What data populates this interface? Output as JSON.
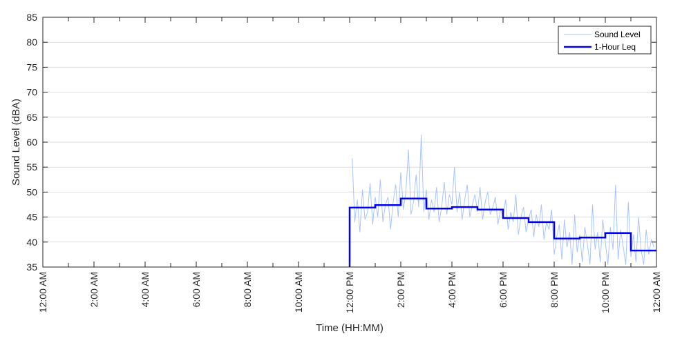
{
  "chart_data": {
    "type": "line",
    "title": "",
    "xlabel": "Time (HH:MM)",
    "ylabel": "Sound Level (dBA)",
    "ylim": [
      35,
      85
    ],
    "y_ticks": [
      35,
      40,
      45,
      50,
      55,
      60,
      65,
      70,
      75,
      80,
      85
    ],
    "xlim_hours": [
      0,
      24
    ],
    "x_ticks": [
      {
        "hour": 0,
        "label": "12:00 AM"
      },
      {
        "hour": 2,
        "label": "2:00 AM"
      },
      {
        "hour": 4,
        "label": "4:00 AM"
      },
      {
        "hour": 6,
        "label": "6:00 AM"
      },
      {
        "hour": 8,
        "label": "8:00 AM"
      },
      {
        "hour": 10,
        "label": "10:00 AM"
      },
      {
        "hour": 12,
        "label": "12:00 PM"
      },
      {
        "hour": 14,
        "label": "2:00 PM"
      },
      {
        "hour": 16,
        "label": "4:00 PM"
      },
      {
        "hour": 18,
        "label": "6:00 PM"
      },
      {
        "hour": 20,
        "label": "8:00 PM"
      },
      {
        "hour": 22,
        "label": "10:00 PM"
      },
      {
        "hour": 24,
        "label": "12:00 AM"
      }
    ],
    "grid": "horizontal",
    "legend_position": "top-right",
    "series": [
      {
        "name": "Sound Level",
        "color": "#a8c4ff",
        "style": "thin-line",
        "x_hours": [
          12.1,
          12.2,
          12.3,
          12.4,
          12.5,
          12.6,
          12.7,
          12.8,
          12.9,
          13.0,
          13.1,
          13.2,
          13.3,
          13.4,
          13.5,
          13.6,
          13.7,
          13.8,
          13.9,
          14.0,
          14.1,
          14.2,
          14.3,
          14.4,
          14.5,
          14.6,
          14.7,
          14.8,
          14.9,
          15.0,
          15.1,
          15.2,
          15.3,
          15.4,
          15.5,
          15.6,
          15.7,
          15.8,
          15.9,
          16.0,
          16.1,
          16.2,
          16.3,
          16.4,
          16.5,
          16.6,
          16.7,
          16.8,
          16.9,
          17.0,
          17.1,
          17.2,
          17.3,
          17.4,
          17.5,
          17.6,
          17.7,
          17.8,
          17.9,
          18.0,
          18.1,
          18.2,
          18.3,
          18.4,
          18.5,
          18.6,
          18.7,
          18.8,
          18.9,
          19.0,
          19.1,
          19.2,
          19.3,
          19.4,
          19.5,
          19.6,
          19.7,
          19.8,
          19.9,
          20.0,
          20.1,
          20.2,
          20.3,
          20.4,
          20.5,
          20.6,
          20.7,
          20.8,
          20.9,
          21.0,
          21.1,
          21.2,
          21.3,
          21.4,
          21.5,
          21.6,
          21.7,
          21.8,
          21.9,
          22.0,
          22.1,
          22.2,
          22.3,
          22.4,
          22.5,
          22.6,
          22.7,
          22.8,
          22.9,
          23.0,
          23.1,
          23.2,
          23.3,
          23.4,
          23.5,
          23.6,
          23.7,
          23.8,
          23.9
        ],
        "values": [
          56.8,
          44.0,
          48.5,
          42.0,
          50.5,
          44.5,
          46.0,
          51.8,
          43.5,
          49.0,
          45.0,
          52.5,
          44.0,
          47.5,
          49.0,
          42.5,
          48.0,
          51.5,
          45.0,
          54.0,
          46.5,
          50.0,
          58.5,
          45.5,
          48.0,
          53.5,
          47.0,
          61.5,
          46.0,
          50.5,
          44.5,
          48.5,
          46.0,
          51.0,
          44.0,
          47.0,
          52.0,
          45.5,
          49.5,
          47.5,
          55.0,
          46.0,
          50.0,
          44.5,
          48.5,
          51.5,
          45.0,
          47.5,
          49.5,
          46.0,
          51.0,
          44.5,
          48.0,
          50.0,
          45.5,
          47.0,
          49.0,
          43.5,
          46.5,
          45.0,
          48.5,
          42.5,
          46.0,
          44.0,
          49.5,
          41.5,
          45.0,
          47.0,
          42.0,
          44.5,
          46.5,
          41.0,
          45.5,
          43.0,
          47.5,
          40.5,
          44.0,
          42.5,
          46.5,
          37.5,
          41.0,
          43.5,
          36.5,
          44.5,
          39.0,
          42.0,
          35.5,
          45.5,
          38.0,
          41.5,
          36.0,
          43.0,
          39.5,
          35.5,
          47.5,
          38.5,
          42.0,
          36.0,
          44.5,
          40.0,
          35.5,
          43.0,
          38.5,
          51.5,
          36.5,
          42.5,
          39.0,
          35.5,
          48.0,
          37.0,
          41.5,
          36.0,
          45.0,
          38.5,
          35.5,
          42.5,
          37.5,
          40.5,
          39.0
        ]
      },
      {
        "name": "1-Hour Leq",
        "color": "#0000ee",
        "style": "step",
        "steps": [
          {
            "start": 12,
            "end": 13,
            "value": 46.9
          },
          {
            "start": 13,
            "end": 14,
            "value": 47.4
          },
          {
            "start": 14,
            "end": 15,
            "value": 48.7
          },
          {
            "start": 15,
            "end": 16,
            "value": 46.7
          },
          {
            "start": 16,
            "end": 17,
            "value": 47.0
          },
          {
            "start": 17,
            "end": 18,
            "value": 46.5
          },
          {
            "start": 18,
            "end": 19,
            "value": 44.8
          },
          {
            "start": 19,
            "end": 20,
            "value": 44.0
          },
          {
            "start": 20,
            "end": 21,
            "value": 40.7
          },
          {
            "start": 21,
            "end": 22,
            "value": 40.9
          },
          {
            "start": 22,
            "end": 23,
            "value": 41.8
          },
          {
            "start": 23,
            "end": 24,
            "value": 38.3
          }
        ]
      }
    ]
  }
}
